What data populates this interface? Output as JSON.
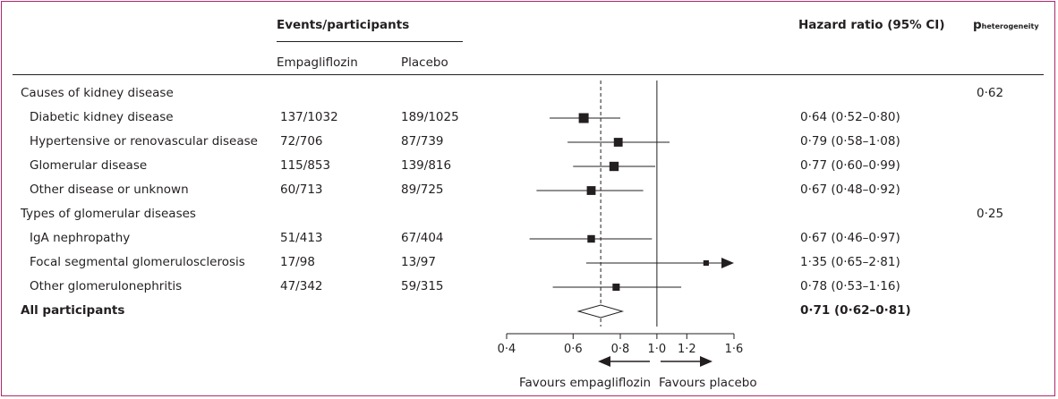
{
  "header": {
    "events_participants": "Events/participants",
    "empagliflozin": "Empagliflozin",
    "placebo": "Placebo",
    "hazard_ratio": "Hazard ratio (95% CI)",
    "p_main": "p",
    "p_sub": "heterogeneity"
  },
  "rows": [
    {
      "label": "Causes of kidney disease",
      "indent": false,
      "bold": false,
      "empa": "",
      "placebo": "",
      "hr_text": "",
      "p": "0·62"
    },
    {
      "label": "Diabetic kidney disease",
      "indent": true,
      "bold": false,
      "empa": "137/1032",
      "placebo": "189/1025",
      "hr_text": "0·64 (0·52–0·80)",
      "p": ""
    },
    {
      "label": "Hypertensive or renovascular disease",
      "indent": true,
      "bold": false,
      "empa": "72/706",
      "placebo": "87/739",
      "hr_text": "0·79 (0·58–1·08)",
      "p": ""
    },
    {
      "label": "Glomerular disease",
      "indent": true,
      "bold": false,
      "empa": "115/853",
      "placebo": "139/816",
      "hr_text": "0·77 (0·60–0·99)",
      "p": ""
    },
    {
      "label": "Other disease or unknown",
      "indent": true,
      "bold": false,
      "empa": "60/713",
      "placebo": "89/725",
      "hr_text": "0·67 (0·48–0·92)",
      "p": ""
    },
    {
      "label": "Types of glomerular diseases",
      "indent": false,
      "bold": false,
      "empa": "",
      "placebo": "",
      "hr_text": "",
      "p": "0·25"
    },
    {
      "label": "IgA nephropathy",
      "indent": true,
      "bold": false,
      "empa": "51/413",
      "placebo": "67/404",
      "hr_text": "0·67 (0·46–0·97)",
      "p": ""
    },
    {
      "label": "Focal segmental glomerulosclerosis",
      "indent": true,
      "bold": false,
      "empa": "17/98",
      "placebo": "13/97",
      "hr_text": "1·35 (0·65–2·81)",
      "p": ""
    },
    {
      "label": "Other glomerulonephritis",
      "indent": true,
      "bold": false,
      "empa": "47/342",
      "placebo": "59/315",
      "hr_text": "0·78 (0·53–1·16)",
      "p": ""
    },
    {
      "label": "All participants",
      "indent": false,
      "bold": true,
      "empa": "",
      "placebo": "",
      "hr_text": "0·71 (0·62–0·81)",
      "p": ""
    }
  ],
  "axis": {
    "favours_left": "Favours empagliflozin",
    "favours_right": "Favours placebo"
  },
  "chart_data": {
    "type": "forest",
    "x_scale": "log",
    "xlim": [
      0.4,
      1.6
    ],
    "x_ticks": [
      0.4,
      0.6,
      0.8,
      1.0,
      1.2,
      1.6
    ],
    "x_tick_labels": [
      "0·4",
      "0·6",
      "0·8",
      "1·0",
      "1·2",
      "1·6"
    ],
    "reference_line": 1.0,
    "overall_line": 0.71,
    "estimates": [
      {
        "row": 1,
        "hr": 0.64,
        "lo": 0.52,
        "hi": 0.8,
        "weight": 1032
      },
      {
        "row": 2,
        "hr": 0.79,
        "lo": 0.58,
        "hi": 1.08,
        "weight": 706
      },
      {
        "row": 3,
        "hr": 0.77,
        "lo": 0.6,
        "hi": 0.99,
        "weight": 853
      },
      {
        "row": 4,
        "hr": 0.67,
        "lo": 0.48,
        "hi": 0.92,
        "weight": 713
      },
      {
        "row": 6,
        "hr": 0.67,
        "lo": 0.46,
        "hi": 0.97,
        "weight": 413
      },
      {
        "row": 7,
        "hr": 1.35,
        "lo": 0.65,
        "hi": 2.81,
        "weight": 98
      },
      {
        "row": 8,
        "hr": 0.78,
        "lo": 0.53,
        "hi": 1.16,
        "weight": 342
      }
    ],
    "overall": {
      "row": 9,
      "hr": 0.71,
      "lo": 0.62,
      "hi": 0.81
    }
  }
}
